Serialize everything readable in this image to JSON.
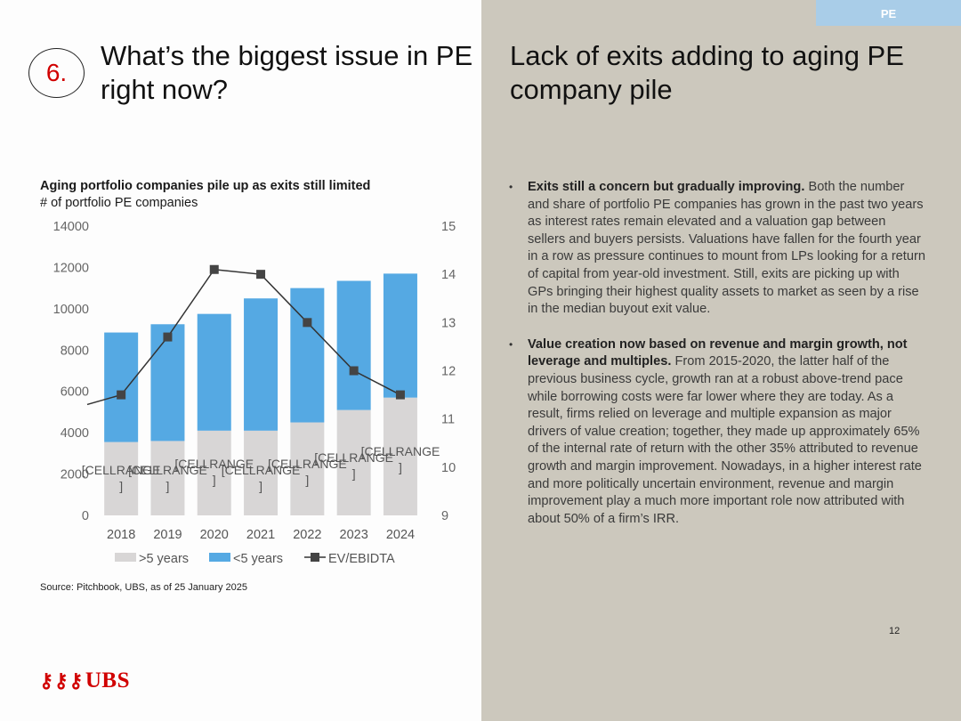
{
  "section_tag": "PE",
  "section_number": "6.",
  "left_title": "What’s the biggest issue in PE right now?",
  "right_title": "Lack of exits adding to aging PE company pile",
  "chart": {
    "title": "Aging portfolio companies pile up as exits still limited",
    "subtitle": "# of portfolio PE companies",
    "source": "Source: Pitchbook, UBS, as of 25 January 2025"
  },
  "chart_data": {
    "type": "bar",
    "stacked": true,
    "categories": [
      "2018",
      "2019",
      "2020",
      "2021",
      "2022",
      "2023",
      "2024"
    ],
    "series": [
      {
        "name": ">5 years",
        "axis": "left",
        "color": "#d8d6d6",
        "values": [
          3550,
          3600,
          4100,
          4100,
          4500,
          5100,
          5700
        ]
      },
      {
        "name": "<5 years",
        "axis": "left",
        "color": "#55a9e3",
        "values": [
          5300,
          5650,
          5650,
          6400,
          6500,
          6250,
          6000
        ]
      },
      {
        "name": "EV/EBIDTA",
        "type": "line",
        "axis": "right",
        "color": "#333333",
        "values": [
          11.5,
          12.7,
          14.1,
          14.0,
          13.0,
          12.0,
          11.5
        ],
        "lead_in": 11.3
      }
    ],
    "data_labels": [
      "[CELLRANGE]",
      "[CELLRANGE]",
      "[CELLRANGE]",
      "[CELLRANGE]",
      "[CELLRANGE]",
      "[CELLRANGE]",
      "[CELLRANGE]"
    ],
    "y_left": {
      "min": 0,
      "max": 14000,
      "ticks": [
        "0",
        "2000",
        "4000",
        "6000",
        "8000",
        "10000",
        "12000",
        "14000"
      ]
    },
    "y_right": {
      "min": 9,
      "max": 15,
      "ticks": [
        "9",
        "10",
        "11",
        "12",
        "13",
        "14",
        "15"
      ]
    },
    "legend": [
      ">5 years",
      "<5 years",
      "EV/EBIDTA"
    ],
    "legend_position": "bottom",
    "grid": false
  },
  "bullets": [
    {
      "heading": "Exits still a concern but gradually improving.",
      "body": " Both the number and share of portfolio PE companies has grown in the past two years as interest rates remain elevated and a valuation gap between sellers and buyers persists. Valuations have fallen for the fourth year in a row as pressure continues to mount  from LPs looking for a return of capital from year-old investment. Still, exits are picking up with GPs bringing their highest quality assets to market as seen by a rise in the median buyout exit value."
    },
    {
      "heading": "Value creation now based on revenue and margin growth, not leverage and multiples.",
      "body": " From 2015-2020, the latter half of the previous business cycle, growth ran at a robust above-trend pace while borrowing costs were far lower where they are today. As a result, firms relied on leverage and multiple expansion as major drivers of value creation; together, they made up approximately 65% of the internal rate of return with the other 35% attributed to revenue growth and margin improvement. Nowadays, in a higher interest rate and more politically uncertain environment, revenue and margin improvement play a much more important role now attributed with about 50% of a firm’s IRR."
    }
  ],
  "page_number": "12",
  "logo_text": "UBS",
  "logo_icon": "ubs-keys-icon"
}
